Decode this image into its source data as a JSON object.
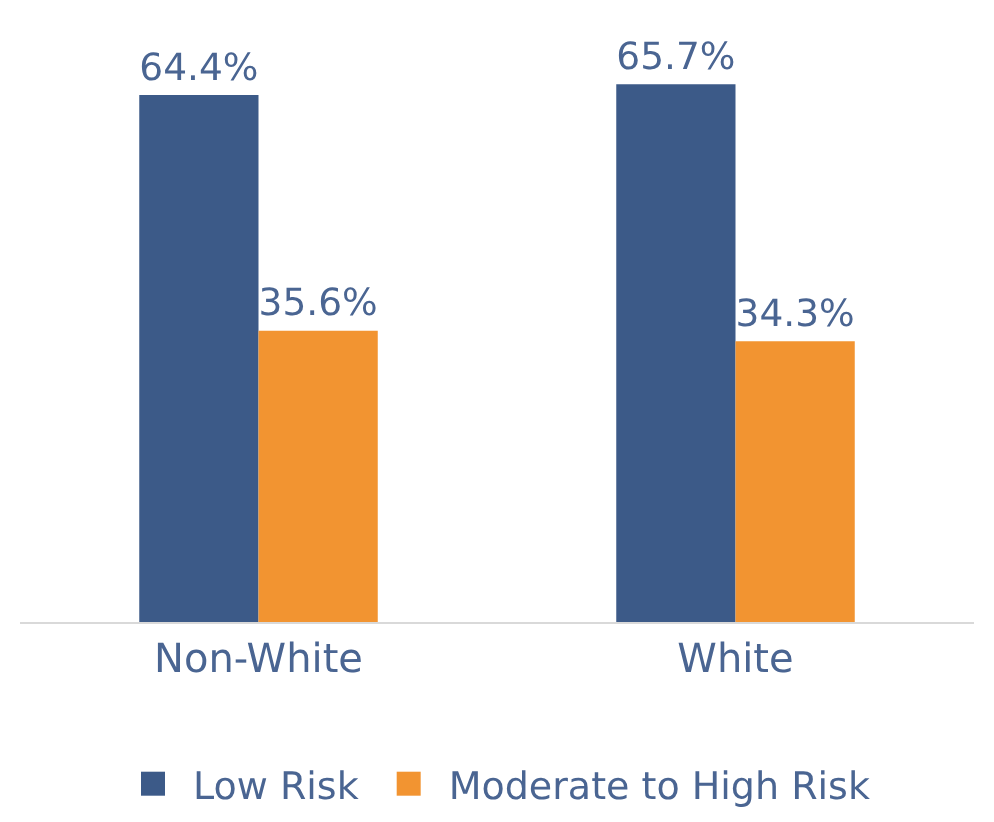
{
  "chart_data": {
    "type": "bar",
    "categories": [
      "Non-White",
      "White"
    ],
    "series": [
      {
        "name": "Low Risk",
        "color": "#3c5a88",
        "values": [
          64.4,
          65.7
        ],
        "value_labels": [
          "64.4%",
          "65.7%"
        ]
      },
      {
        "name": "Moderate to High Risk",
        "color": "#f29431",
        "values": [
          35.6,
          34.3
        ],
        "value_labels": [
          "35.6%",
          "34.3%"
        ]
      }
    ],
    "ylim": [
      0,
      76
    ],
    "legend": "bottom"
  }
}
